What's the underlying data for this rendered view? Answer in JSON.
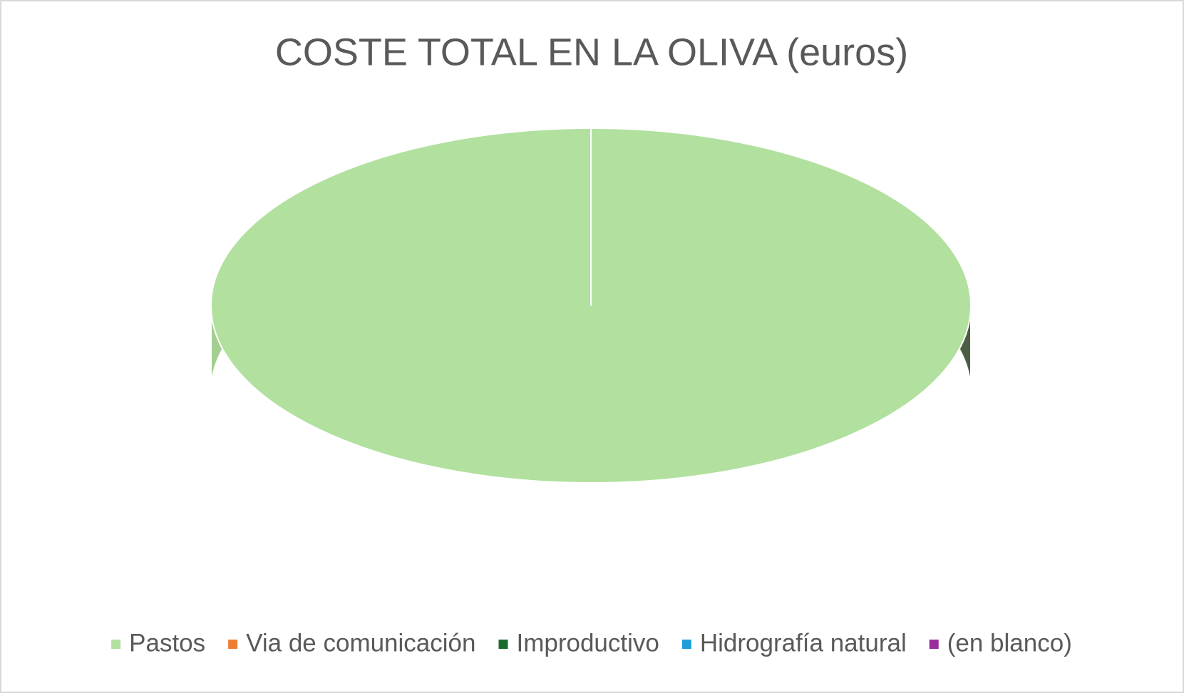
{
  "chart_data": {
    "type": "pie3d",
    "title": "COSTE TOTAL EN LA OLIVA (euros)",
    "categories": [
      "Pastos",
      "Via de comunicación",
      "Improductivo",
      "Hidrografía natural",
      "(en blanco)"
    ],
    "values": [
      100,
      0,
      0,
      0,
      0
    ],
    "colors": [
      "#b1e09f",
      "#ed7d31",
      "#1e6b2e",
      "#1f9ed8",
      "#9b2c9b"
    ],
    "legend": "bottom"
  }
}
